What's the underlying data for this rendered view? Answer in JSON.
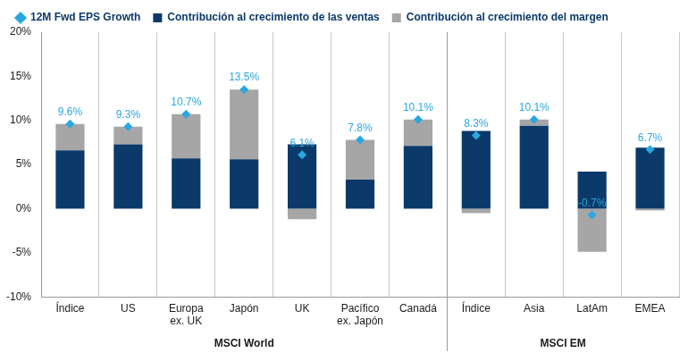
{
  "chart_data": {
    "type": "bar",
    "stacked": true,
    "legend": "top",
    "grid": true,
    "categories": [
      "Índice",
      "US",
      [
        "Europa",
        "ex. UK"
      ],
      "Japón",
      "UK",
      [
        "Pacífico",
        "ex. Japón"
      ],
      "Canadá",
      "Índice",
      "Asia",
      "LatAm",
      "EMEA"
    ],
    "groups": [
      {
        "label": "MSCI World",
        "size": 7
      },
      {
        "label": "MSCI EM",
        "size": 4
      }
    ],
    "series": [
      {
        "name": "Contribución al crecimiento de las ventas",
        "type": "bar",
        "color": "#0b3a6a",
        "values": [
          6.6,
          7.3,
          5.7,
          5.6,
          7.3,
          3.3,
          7.1,
          8.8,
          9.4,
          4.2,
          6.9
        ]
      },
      {
        "name": "Contribución al crecimiento del margen",
        "type": "bar",
        "color": "#a6a6a6",
        "values": [
          3.0,
          2.0,
          5.0,
          7.9,
          -1.2,
          4.5,
          3.0,
          -0.5,
          0.7,
          -4.9,
          -0.2
        ]
      },
      {
        "name": "12M Fwd EPS Growth",
        "type": "scatter",
        "marker": "diamond",
        "color": "#2aa7df",
        "data_labels": true,
        "values": [
          9.6,
          9.3,
          10.7,
          13.5,
          6.1,
          7.8,
          10.1,
          8.3,
          10.1,
          -0.7,
          6.7
        ],
        "value_labels": [
          "9.6%",
          "9.3%",
          "10.7%",
          "13.5%",
          "6.1%",
          "7.8%",
          "10.1%",
          "8.3%",
          "10.1%",
          "-0.7%",
          "6.7%"
        ]
      }
    ],
    "ylim": [
      -10,
      20
    ],
    "yticks": [
      {
        "value": -10,
        "label": "-10%"
      },
      {
        "value": -5,
        "label": "-5%"
      },
      {
        "value": 0,
        "label": "0%"
      },
      {
        "value": 5,
        "label": "5%"
      },
      {
        "value": 10,
        "label": "10%"
      },
      {
        "value": 15,
        "label": "15%"
      },
      {
        "value": 20,
        "label": "20%"
      }
    ]
  }
}
